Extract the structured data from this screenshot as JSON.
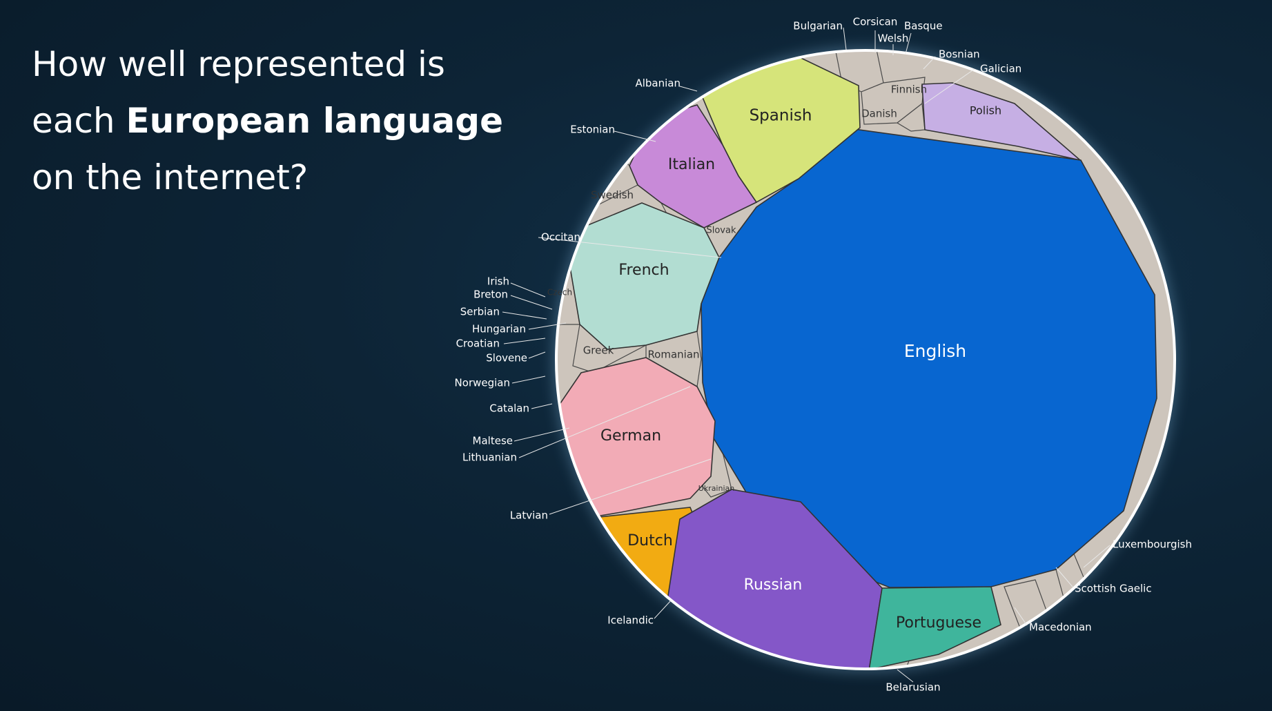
{
  "title": {
    "line1": "How well represented is",
    "line2_pre": "each ",
    "line2_bold": "European language",
    "line3": "on the internet?"
  },
  "chart_data": {
    "type": "voronoi-treemap",
    "title": "How well represented is each European language on the internet?",
    "colors": {
      "English": "#0866d0",
      "Spanish": "#d6e47a",
      "Italian": "#c88ad8",
      "French": "#b2ddd2",
      "German": "#f2abb6",
      "Dutch": "#f2ab12",
      "Russian": "#8457c8",
      "Portuguese": "#3fb59c",
      "Polish": "#c6afe4",
      "minor": "#cdc5bc"
    },
    "labels_inside": [
      "English",
      "Spanish",
      "Italian",
      "French",
      "German",
      "Dutch",
      "Russian",
      "Portuguese",
      "Polish",
      "Finnish",
      "Danish",
      "Swedish",
      "Slovak",
      "Czech",
      "Greek",
      "Romanian",
      "Ukrainian"
    ],
    "labels_outside": [
      "Bulgarian",
      "Corsican",
      "Basque",
      "Welsh",
      "Bosnian",
      "Galician",
      "Albanian",
      "Estonian",
      "Occitan",
      "Irish",
      "Breton",
      "Serbian",
      "Hungarian",
      "Croatian",
      "Slovene",
      "Norwegian",
      "Catalan",
      "Maltese",
      "Lithuanian",
      "Latvian",
      "Icelandic",
      "Belarusian",
      "Macedonian",
      "Scottish Gaelic",
      "Luxembourgish"
    ]
  }
}
